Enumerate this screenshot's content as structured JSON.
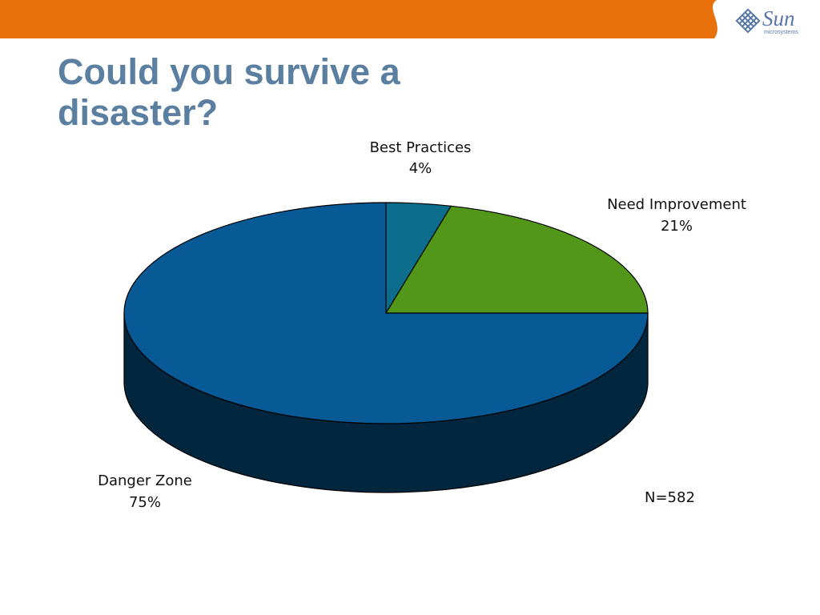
{
  "slide": {
    "title": "Could you survive a disaster?",
    "band_color": "#E8700A",
    "title_color": "#5A7FA0"
  },
  "logo": {
    "brand": "Sun",
    "subtitle": "microsystems",
    "icon": "sun-diamond-icon",
    "color": "#5877A8"
  },
  "chart_data": {
    "type": "pie",
    "slices": [
      {
        "label": "Best Practices",
        "value": 4,
        "value_label": "4%",
        "color": "#0C6E8C"
      },
      {
        "label": "Need Improvement",
        "value": 21,
        "value_label": "21%",
        "color": "#52961A"
      },
      {
        "label": "Danger Zone",
        "value": 75,
        "value_label": "75%",
        "color": "#075A96"
      }
    ],
    "note": "N=582",
    "three_d": true,
    "legend": "none"
  }
}
